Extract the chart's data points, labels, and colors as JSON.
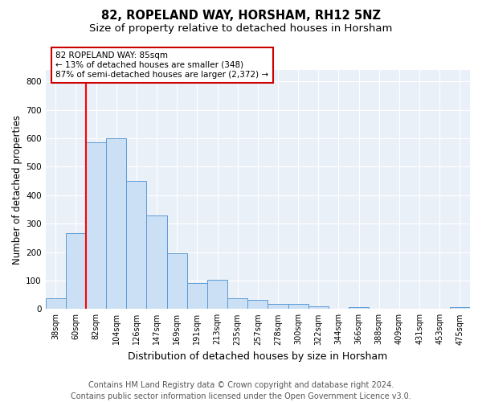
{
  "title1": "82, ROPELAND WAY, HORSHAM, RH12 5NZ",
  "title2": "Size of property relative to detached houses in Horsham",
  "xlabel": "Distribution of detached houses by size in Horsham",
  "ylabel": "Number of detached properties",
  "categories": [
    "38sqm",
    "60sqm",
    "82sqm",
    "104sqm",
    "126sqm",
    "147sqm",
    "169sqm",
    "191sqm",
    "213sqm",
    "235sqm",
    "257sqm",
    "278sqm",
    "300sqm",
    "322sqm",
    "344sqm",
    "366sqm",
    "388sqm",
    "409sqm",
    "431sqm",
    "453sqm",
    "475sqm"
  ],
  "values": [
    38,
    265,
    585,
    600,
    450,
    328,
    195,
    90,
    103,
    38,
    32,
    18,
    17,
    10,
    0,
    6,
    0,
    0,
    0,
    0,
    6
  ],
  "bar_color": "#cce0f5",
  "bar_edge_color": "#5b9bd5",
  "red_line_x": 1.5,
  "annotation_text": "82 ROPELAND WAY: 85sqm\n← 13% of detached houses are smaller (348)\n87% of semi-detached houses are larger (2,372) →",
  "annotation_box_color": "#ffffff",
  "annotation_box_edge_color": "#cc0000",
  "footer": "Contains HM Land Registry data © Crown copyright and database right 2024.\nContains public sector information licensed under the Open Government Licence v3.0.",
  "ylim": [
    0,
    840
  ],
  "yticks": [
    0,
    100,
    200,
    300,
    400,
    500,
    600,
    700,
    800
  ],
  "background_color": "#eaf0f8",
  "title1_fontsize": 10.5,
  "title2_fontsize": 9.5,
  "xlabel_fontsize": 9,
  "ylabel_fontsize": 8.5,
  "footer_fontsize": 7,
  "tick_fontsize": 7,
  "ytick_fontsize": 7.5
}
